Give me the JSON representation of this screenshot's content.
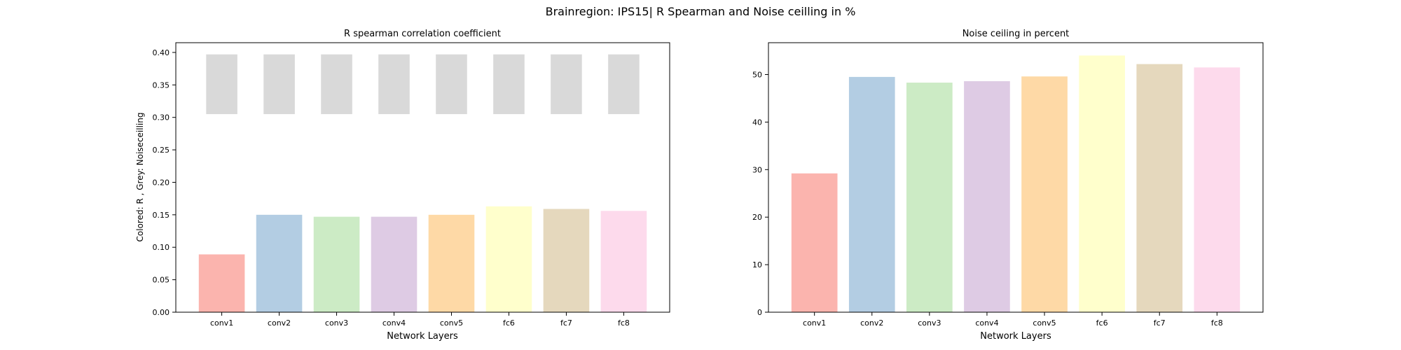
{
  "figure": {
    "title": "Brainregion: IPS15| R Spearman and Noise ceilling in %"
  },
  "chart_data": [
    {
      "type": "bar",
      "title": "R spearman correlation coefficient",
      "xlabel": "Network Layers",
      "ylabel": "Colored: R , Grey: Noiseceilling",
      "categories": [
        "conv1",
        "conv2",
        "conv3",
        "conv4",
        "conv5",
        "fc6",
        "fc7",
        "fc8"
      ],
      "ylim": [
        0,
        0.415
      ],
      "yticks": [
        0.0,
        0.05,
        0.1,
        0.15,
        0.2,
        0.25,
        0.3,
        0.35,
        0.4
      ],
      "ytick_labels": [
        "0.00",
        "0.05",
        "0.10",
        "0.15",
        "0.20",
        "0.25",
        "0.30",
        "0.35",
        "0.40"
      ],
      "series": [
        {
          "values": [
            0.089,
            0.15,
            0.147,
            0.147,
            0.15,
            0.163,
            0.159,
            0.156
          ]
        }
      ],
      "noise_ceiling": {
        "lower": 0.305,
        "upper": 0.397,
        "color": "#d9d9d9"
      },
      "colors": [
        "#fbb4ae",
        "#b3cde3",
        "#ccebc5",
        "#decbe4",
        "#fed9a6",
        "#ffffcc",
        "#e5d8bd",
        "#fddaec"
      ],
      "grid": false
    },
    {
      "type": "bar",
      "title": "Noise ceiling in percent",
      "xlabel": "Network Layers",
      "ylabel": "",
      "categories": [
        "conv1",
        "conv2",
        "conv3",
        "conv4",
        "conv5",
        "fc6",
        "fc7",
        "fc8"
      ],
      "ylim": [
        0,
        56.7
      ],
      "yticks": [
        0,
        10,
        20,
        30,
        40,
        50
      ],
      "ytick_labels": [
        "0",
        "10",
        "20",
        "30",
        "40",
        "50"
      ],
      "series": [
        {
          "values": [
            29.2,
            49.5,
            48.3,
            48.6,
            49.6,
            54.0,
            52.2,
            51.5
          ]
        }
      ],
      "colors": [
        "#fbb4ae",
        "#b3cde3",
        "#ccebc5",
        "#decbe4",
        "#fed9a6",
        "#ffffcc",
        "#e5d8bd",
        "#fddaec"
      ],
      "grid": false
    }
  ]
}
